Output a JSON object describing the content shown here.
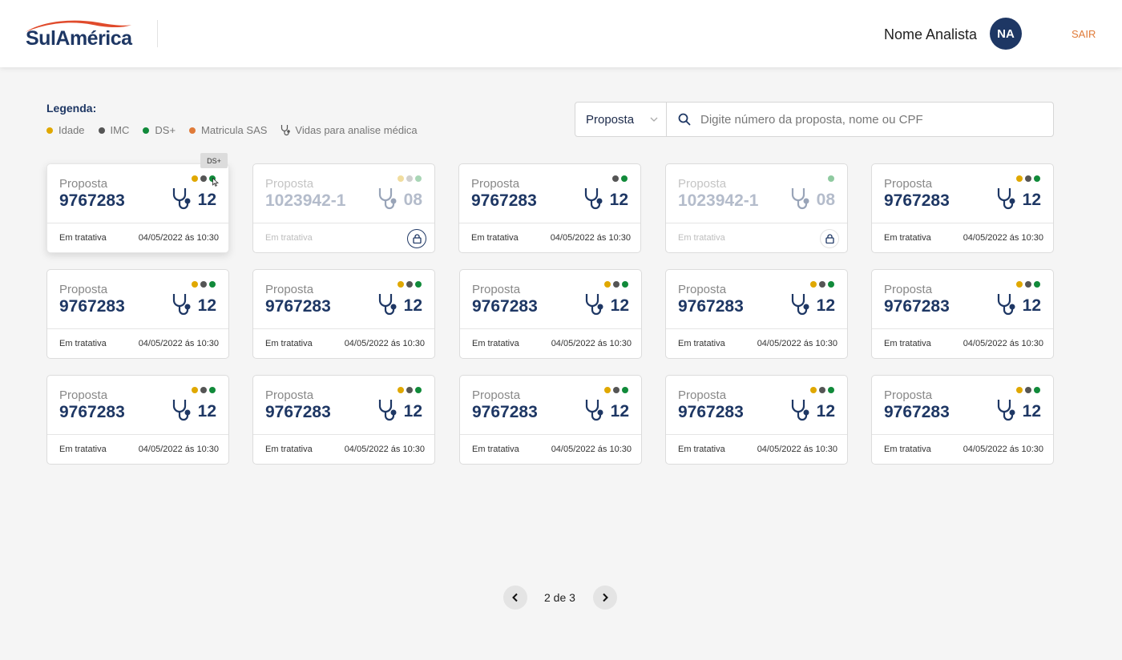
{
  "header": {
    "logo_text": "SulAmérica",
    "user_name": "Nome Analista",
    "avatar_initials": "NA",
    "logout_label": "SAIR"
  },
  "legend": {
    "title": "Legenda:",
    "items": [
      {
        "label": "Idade",
        "color": "#e0a800"
      },
      {
        "label": "IMC",
        "color": "#555555"
      },
      {
        "label": "DS+",
        "color": "#118a3a"
      },
      {
        "label": "Matricula SAS",
        "color": "#e07b39"
      },
      {
        "label": "Vidas para analise médica",
        "icon": "stethoscope-icon"
      }
    ]
  },
  "search": {
    "select_value": "Proposta",
    "placeholder": "Digite número da proposta, nome ou CPF"
  },
  "tooltip": "DS+",
  "cards": [
    {
      "label": "Proposta",
      "number": "9767283",
      "count": "12",
      "status": "Em tratativa",
      "date": "04/05/2022 ás 10:30"
    },
    {
      "label": "Proposta",
      "number": "1023942-1",
      "count": "08",
      "status": "Em tratativa",
      "date": ""
    },
    {
      "label": "Proposta",
      "number": "9767283",
      "count": "12",
      "status": "Em tratativa",
      "date": "04/05/2022 ás 10:30"
    },
    {
      "label": "Proposta",
      "number": "1023942-1",
      "count": "08",
      "status": "Em tratativa",
      "date": ""
    },
    {
      "label": "Proposta",
      "number": "9767283",
      "count": "12",
      "status": "Em tratativa",
      "date": "04/05/2022 ás 10:30"
    },
    {
      "label": "Proposta",
      "number": "9767283",
      "count": "12",
      "status": "Em tratativa",
      "date": "04/05/2022 ás 10:30"
    },
    {
      "label": "Proposta",
      "number": "9767283",
      "count": "12",
      "status": "Em tratativa",
      "date": "04/05/2022 ás 10:30"
    },
    {
      "label": "Proposta",
      "number": "9767283",
      "count": "12",
      "status": "Em tratativa",
      "date": "04/05/2022 ás 10:30"
    },
    {
      "label": "Proposta",
      "number": "9767283",
      "count": "12",
      "status": "Em tratativa",
      "date": "04/05/2022 ás 10:30"
    },
    {
      "label": "Proposta",
      "number": "9767283",
      "count": "12",
      "status": "Em tratativa",
      "date": "04/05/2022 ás 10:30"
    },
    {
      "label": "Proposta",
      "number": "9767283",
      "count": "12",
      "status": "Em tratativa",
      "date": "04/05/2022 ás 10:30"
    },
    {
      "label": "Proposta",
      "number": "9767283",
      "count": "12",
      "status": "Em tratativa",
      "date": "04/05/2022 ás 10:30"
    },
    {
      "label": "Proposta",
      "number": "9767283",
      "count": "12",
      "status": "Em tratativa",
      "date": "04/05/2022 ás 10:30"
    },
    {
      "label": "Proposta",
      "number": "9767283",
      "count": "12",
      "status": "Em tratativa",
      "date": "04/05/2022 ás 10:30"
    },
    {
      "label": "Proposta",
      "number": "9767283",
      "count": "12",
      "status": "Em tratativa",
      "date": "04/05/2022 ás 10:30"
    }
  ],
  "pagination": {
    "text": "2 de 3"
  }
}
